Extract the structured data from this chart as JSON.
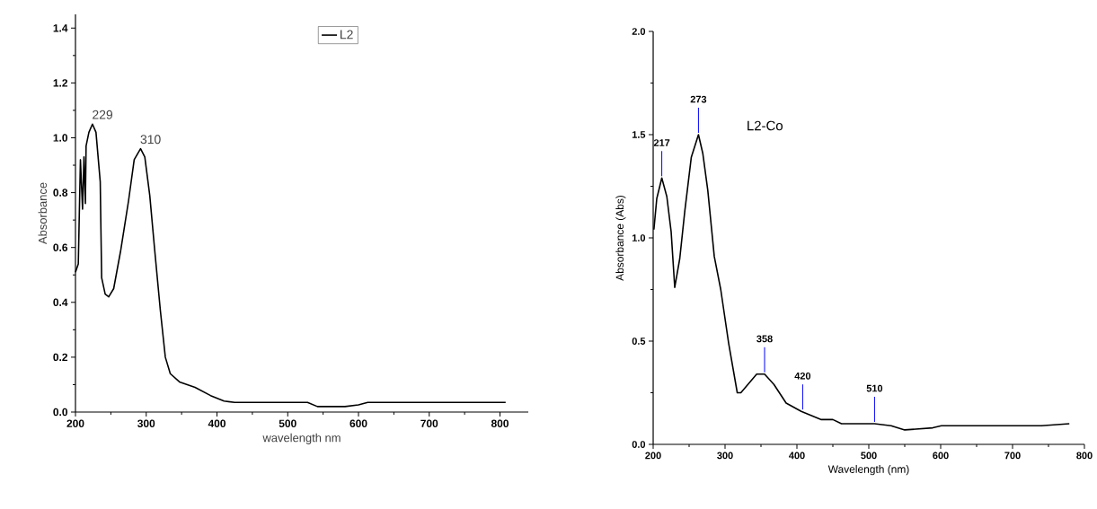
{
  "chart_data": [
    {
      "type": "line",
      "xlabel": "wavelength nm",
      "ylabel": "Absorbance",
      "xlim": [
        200,
        840
      ],
      "ylim": [
        0,
        1.45
      ],
      "xticks": [
        200,
        300,
        400,
        500,
        600,
        700,
        800
      ],
      "yticks": [
        {
          "value": 0,
          "label": "0.0"
        },
        0.2,
        0.4,
        0.6,
        0.8,
        {
          "value": 1,
          "label": "1.0"
        },
        1.2,
        1.4
      ],
      "legend": "top",
      "grid": false,
      "series": [
        {
          "name": "L2",
          "color": "#000000",
          "x": [
            200,
            204,
            207,
            210,
            212,
            214,
            215,
            219,
            224,
            229,
            235,
            237,
            242,
            247,
            254,
            264,
            275,
            283,
            292,
            298,
            305,
            312,
            320,
            327,
            334,
            347,
            369,
            391,
            410,
            425,
            528,
            542,
            581,
            600,
            613,
            808
          ],
          "values": [
            0.51,
            0.54,
            0.92,
            0.74,
            0.93,
            0.76,
            0.97,
            1.02,
            1.05,
            1.02,
            0.84,
            0.49,
            0.43,
            0.42,
            0.45,
            0.59,
            0.77,
            0.92,
            0.96,
            0.93,
            0.79,
            0.59,
            0.37,
            0.2,
            0.14,
            0.11,
            0.09,
            0.06,
            0.04,
            0.035,
            0.035,
            0.02,
            0.02,
            0.026,
            0.035,
            0.035
          ]
        }
      ],
      "annotations": [
        {
          "text": "229",
          "x": 224,
          "y": 1.05
        },
        {
          "text": "310",
          "x": 292,
          "y": 0.96
        }
      ]
    },
    {
      "type": "line",
      "xlabel": "Wavelength (nm)",
      "ylabel": "Absorbance (Abs)",
      "xlim": [
        200,
        800
      ],
      "ylim": [
        0,
        2.0
      ],
      "xticks": [
        200,
        300,
        400,
        500,
        600,
        700,
        800
      ],
      "yticks": [
        {
          "value": 0,
          "label": "0.0"
        },
        {
          "value": 0.5,
          "label": "0.5"
        },
        {
          "value": 1,
          "label": "1.0"
        },
        {
          "value": 1.5,
          "label": "1.5"
        },
        {
          "value": 2,
          "label": "2.0"
        }
      ],
      "legend": false,
      "grid": false,
      "series": [
        {
          "name": "L2-Co",
          "color": "#000000",
          "x": [
            201,
            205,
            212,
            219,
            225,
            230,
            237,
            244,
            253,
            263,
            269,
            276,
            285,
            294,
            305,
            317,
            322,
            344,
            355,
            368,
            385,
            406,
            434,
            450,
            462,
            508,
            531,
            550,
            589,
            601,
            647,
            740,
            779
          ],
          "values": [
            1.04,
            1.19,
            1.29,
            1.2,
            1.03,
            0.76,
            0.9,
            1.13,
            1.39,
            1.5,
            1.41,
            1.23,
            0.91,
            0.75,
            0.49,
            0.25,
            0.25,
            0.34,
            0.34,
            0.29,
            0.2,
            0.16,
            0.12,
            0.12,
            0.1,
            0.1,
            0.09,
            0.07,
            0.08,
            0.09,
            0.09,
            0.09,
            0.1
          ]
        }
      ],
      "annotations": [
        {
          "text": "217",
          "x": 212,
          "y": 1.29
        },
        {
          "text": "273",
          "x": 263,
          "y": 1.5
        },
        {
          "text": "358",
          "x": 355,
          "y": 0.34
        },
        {
          "text": "420",
          "x": 408,
          "y": 0.16
        },
        {
          "text": "510",
          "x": 508,
          "y": 0.1
        }
      ]
    }
  ]
}
